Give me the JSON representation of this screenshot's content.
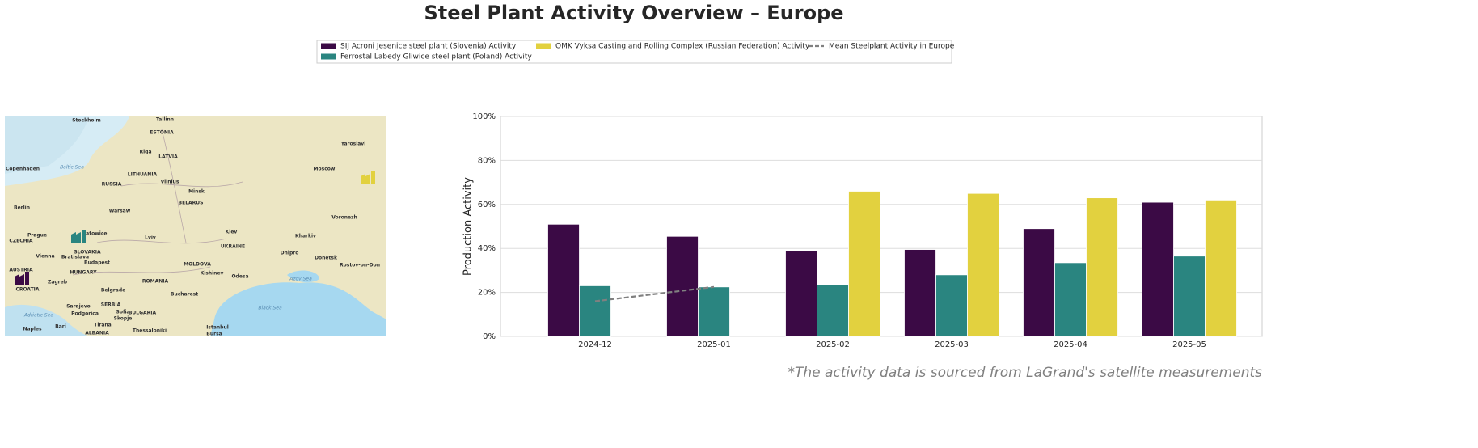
{
  "chart_data": {
    "type": "bar",
    "title": "Steel Plant Activity Overview – Europe",
    "ylabel": "Production Activity",
    "note": "*The activity data is sourced from LaGrand's satellite measurements",
    "categories": [
      "2024-12",
      "2025-01",
      "2025-02",
      "2025-03",
      "2025-04",
      "2025-05"
    ],
    "series": [
      {
        "name": "SIJ Acroni Jesenice steel plant (Slovenia) Activity",
        "color": "#3b0a45",
        "values": [
          51,
          45.5,
          39,
          39.5,
          49,
          61
        ]
      },
      {
        "name": "Ferrostal Labedy Gliwice steel plant (Poland) Activity",
        "color": "#2a8580",
        "values": [
          23,
          22.5,
          23.5,
          28,
          33.5,
          36.5
        ]
      },
      {
        "name": "OMK Vyksa Casting and Rolling Complex (Russian Federation) Activity",
        "color": "#e2d13f",
        "values": [
          null,
          null,
          66,
          65,
          63,
          62
        ]
      },
      {
        "name": "Mean Steelplant Activity in Europe",
        "color": "#808080",
        "type": "line",
        "dashed": true,
        "values": [
          16,
          22.5,
          null,
          null,
          null,
          null
        ]
      }
    ],
    "ylim": [
      0,
      100
    ],
    "yticks": [
      {
        "value": 0,
        "label": "0%"
      },
      {
        "value": 20,
        "label": "20%"
      },
      {
        "value": 40,
        "label": "40%"
      },
      {
        "value": 60,
        "label": "60%"
      },
      {
        "value": 80,
        "label": "80%"
      },
      {
        "value": 100,
        "label": "100%"
      }
    ],
    "grid": true,
    "legend": "upper center",
    "map_labels": [
      "Stockholm",
      "Tallinn",
      "ESTONIA",
      "Riga",
      "LATVIA",
      "Copenhagen",
      "Baltic Sea",
      "LITHUANIA",
      "Vilnius",
      "RUSSIA",
      "Moscow",
      "Yaroslavl",
      "Minsk",
      "BELARUS",
      "Berlin",
      "Warsaw",
      "Voronezh",
      "Prague",
      "CZECHIA",
      "Katowice",
      "Lviv",
      "Kiev",
      "Kharkiv",
      "UKRAINE",
      "Vienna",
      "Bratislava",
      "SLOVAKIA",
      "Budapest",
      "HUNGARY",
      "AUSTRIA",
      "Zagreb",
      "CROATIA",
      "MOLDOVA",
      "Dnipro",
      "Donetsk",
      "Rostov-on-Don",
      "Kishinev",
      "Odesa",
      "ROMANIA",
      "Azov Sea",
      "Belgrade",
      "Bucharest",
      "SERBIA",
      "BULGARIA",
      "Sofia",
      "Black Sea",
      "Sarajevo",
      "Podgorica",
      "Skopje",
      "Tirana",
      "Naples",
      "Bari",
      "Thessaloniki",
      "Istanbul",
      "Bursa",
      "Adriatic Sea",
      "ALBANIA"
    ]
  }
}
